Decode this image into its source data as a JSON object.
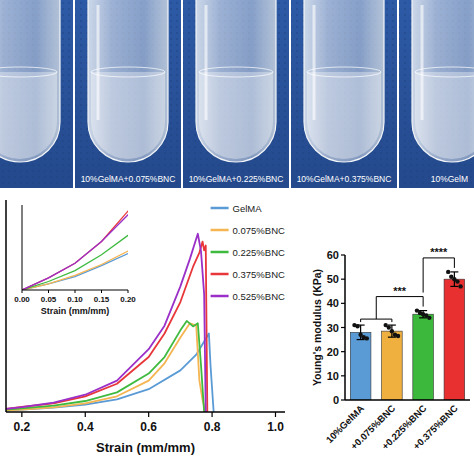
{
  "photo_panel": {
    "labels": [
      "10%GelMA+0.075%BNC",
      "10%GelMA+0.225%BNC",
      "10%GelMA+0.375%BNC",
      "10%GelM"
    ]
  },
  "chart_data": [
    {
      "type": "line",
      "x_label": "Strain (mm/mm)",
      "xlim": [
        0.15,
        1.03
      ],
      "xticks": [
        0.2,
        0.4,
        0.6,
        0.8,
        {
          "value": 1,
          "label": "1.0"
        }
      ],
      "ylim": [
        0,
        27
      ],
      "tick_labels": "x",
      "legend": "upper right",
      "series": [
        {
          "name": "GelMA",
          "color": "#5b9bd5",
          "x": [
            0,
            0.05,
            0.1,
            0.15,
            0.2,
            0.3,
            0.4,
            0.5,
            0.6,
            0.7,
            0.75,
            0.79,
            0.795,
            0.8,
            0.805
          ],
          "values": [
            0,
            0.05,
            0.11,
            0.2,
            0.3,
            0.55,
            0.95,
            1.6,
            2.9,
            5.3,
            7.3,
            10,
            6,
            3,
            0
          ]
        },
        {
          "name": "0.075%BNC",
          "color": "#f4b552",
          "x": [
            0,
            0.05,
            0.1,
            0.15,
            0.2,
            0.3,
            0.4,
            0.5,
            0.6,
            0.65,
            0.7,
            0.73,
            0.75,
            0.76,
            0.77,
            0.78
          ],
          "values": [
            0,
            0.05,
            0.12,
            0.21,
            0.32,
            0.6,
            1.1,
            2.0,
            4.0,
            6.2,
            9.5,
            11.3,
            11.0,
            4,
            1.5,
            0
          ]
        },
        {
          "name": "0.225%BNC",
          "color": "#3fba3f",
          "x": [
            0,
            0.05,
            0.1,
            0.15,
            0.2,
            0.3,
            0.4,
            0.5,
            0.6,
            0.65,
            0.7,
            0.72,
            0.74,
            0.755,
            0.765,
            0.775
          ],
          "values": [
            0,
            0.07,
            0.16,
            0.29,
            0.45,
            0.8,
            1.4,
            2.5,
            4.9,
            7,
            10.4,
            11.6,
            10.9,
            11.3,
            6,
            0
          ]
        },
        {
          "name": "0.375%BNC",
          "color": "#e8373a",
          "x": [
            0,
            0.05,
            0.1,
            0.15,
            0.2,
            0.3,
            0.4,
            0.5,
            0.6,
            0.65,
            0.7,
            0.74,
            0.76,
            0.77,
            0.775,
            0.78,
            0.785
          ],
          "values": [
            0,
            0.1,
            0.22,
            0.4,
            0.65,
            1.1,
            2.0,
            3.6,
            7.0,
            10,
            14,
            18.5,
            20.3,
            21.7,
            20.6,
            21.2,
            0
          ]
        },
        {
          "name": "0.525%BNC",
          "color": "#9b30c8",
          "x": [
            0,
            0.05,
            0.1,
            0.15,
            0.2,
            0.3,
            0.4,
            0.5,
            0.6,
            0.65,
            0.7,
            0.73,
            0.755,
            0.765,
            0.775,
            0.78
          ],
          "values": [
            0,
            0.1,
            0.22,
            0.4,
            0.62,
            1.2,
            2.2,
            4.0,
            8.0,
            11,
            16,
            19.5,
            22.7,
            20.5,
            15,
            0
          ]
        }
      ],
      "inset": {
        "x_label": "Strain (mm/mm)",
        "xlim": [
          0,
          0.2
        ],
        "xticks": [
          {
            "value": 0,
            "label": "0.00"
          },
          {
            "value": 0.05,
            "label": "0.05"
          },
          {
            "value": 0.1,
            "label": "0.10"
          },
          {
            "value": 0.15,
            "label": "0.15"
          },
          {
            "value": 0.2,
            "label": "0.20"
          }
        ],
        "ylim": [
          0,
          0.7
        ]
      }
    },
    {
      "type": "bar",
      "y_label": "Young's modulus (KPa)",
      "categories": [
        "10%GelMA",
        "+0.075%BNC",
        "+0.225%BNC",
        "+0.375%BNC"
      ],
      "values": [
        28,
        28.5,
        35.5,
        50
      ],
      "errors": [
        3,
        2.5,
        1.5,
        3
      ],
      "points": [
        [
          31,
          30.5,
          27,
          26,
          25.5
        ],
        [
          31,
          30,
          28.5,
          27,
          26.5
        ],
        [
          37,
          36,
          35.5,
          35,
          34
        ],
        [
          53,
          51,
          50,
          49,
          47
        ]
      ],
      "colors": [
        "#5b9bd5",
        "#f0b040",
        "#3cb83c",
        "#e83030"
      ],
      "ylim": [
        0,
        60
      ],
      "yticks": [
        0,
        10,
        20,
        30,
        40,
        50,
        60
      ],
      "significance": [
        {
          "label": "***",
          "left": [
            0,
            1
          ],
          "right": [
            2
          ]
        },
        {
          "label": "****",
          "left": [
            2
          ],
          "right": [
            3
          ]
        }
      ]
    }
  ]
}
